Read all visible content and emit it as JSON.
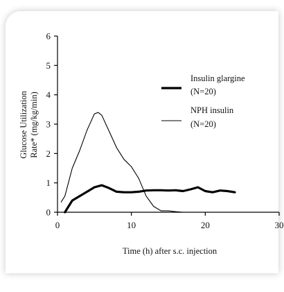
{
  "chart_data": {
    "type": "line",
    "title": "",
    "xlabel": "Time (h) after s.c. injection",
    "ylabel_line1": "Glucose Utilization",
    "ylabel_line2": "Rate* (mg/kg/min)",
    "xlim": [
      0,
      30
    ],
    "ylim": [
      0,
      6
    ],
    "xticks": [
      0,
      10,
      20,
      30
    ],
    "xtick_labels": [
      "0",
      "10",
      "20",
      "30"
    ],
    "yticks": [
      0,
      1,
      2,
      3,
      4,
      5,
      6
    ],
    "ytick_labels": [
      "0",
      "1",
      "2",
      "3",
      "4",
      "5",
      "6"
    ],
    "grid": false,
    "legend_position": "top-right",
    "series": [
      {
        "name_line1": "Insulin glargine",
        "name_line2": "(N=20)",
        "color": "#000000",
        "style": "thick",
        "x": [
          1,
          2,
          3,
          4,
          5,
          6,
          7,
          8,
          9,
          10,
          11,
          12,
          13,
          14,
          15,
          16,
          17,
          18,
          19,
          20,
          21,
          22,
          23,
          24
        ],
        "y": [
          0.0,
          0.4,
          0.55,
          0.7,
          0.85,
          0.92,
          0.82,
          0.7,
          0.68,
          0.68,
          0.7,
          0.74,
          0.75,
          0.75,
          0.74,
          0.75,
          0.72,
          0.78,
          0.85,
          0.72,
          0.68,
          0.74,
          0.72,
          0.68
        ]
      },
      {
        "name_line1": "NPH insulin",
        "name_line2": "(N=20)",
        "color": "#000000",
        "style": "thin",
        "x": [
          0.5,
          1,
          2,
          3,
          4,
          5,
          5.5,
          6,
          7,
          8,
          9,
          10,
          11,
          12,
          13,
          14,
          15,
          16,
          17,
          18,
          19
        ],
        "y": [
          0.35,
          0.55,
          1.5,
          2.1,
          2.8,
          3.35,
          3.4,
          3.3,
          2.75,
          2.2,
          1.8,
          1.55,
          1.15,
          0.55,
          0.2,
          0.05,
          0.05,
          0.02,
          0.0,
          0.0,
          0.0
        ]
      }
    ]
  }
}
